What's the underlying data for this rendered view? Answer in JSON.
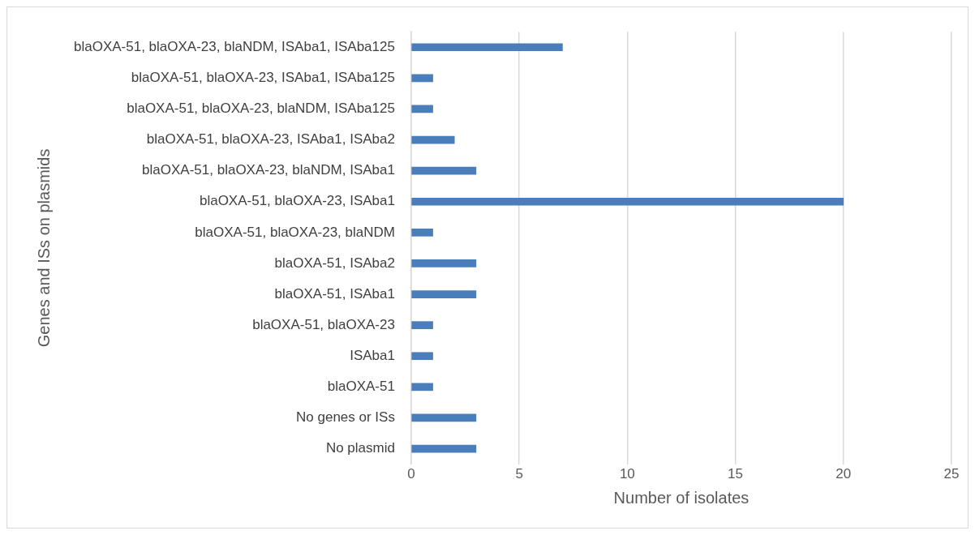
{
  "chart_data": {
    "type": "bar",
    "orientation": "horizontal",
    "xlabel": "Number of isolates",
    "ylabel": "Genes and ISs on plasmids",
    "categories": [
      "blaOXA-51, blaOXA-23, blaNDM, ISAba1, ISAba125",
      "blaOXA-51, blaOXA-23, ISAba1, ISAba125",
      "blaOXA-51, blaOXA-23, blaNDM, ISAba125",
      "blaOXA-51, blaOXA-23, ISAba1, ISAba2",
      "blaOXA-51, blaOXA-23, blaNDM, ISAba1",
      "blaOXA-51, blaOXA-23, ISAba1",
      "blaOXA-51, blaOXA-23, blaNDM",
      "blaOXA-51, ISAba2",
      "blaOXA-51, ISAba1",
      "blaOXA-51, blaOXA-23",
      "ISAba1",
      "blaOXA-51",
      "No genes or ISs",
      "No plasmid"
    ],
    "values": [
      7,
      1,
      1,
      2,
      3,
      20,
      1,
      3,
      3,
      1,
      1,
      1,
      3,
      3
    ],
    "color": "#4a7ebb",
    "xlim": [
      0,
      25
    ],
    "xticks": [
      0,
      5,
      10,
      15,
      20,
      25
    ],
    "grid": "x",
    "legend": false
  }
}
